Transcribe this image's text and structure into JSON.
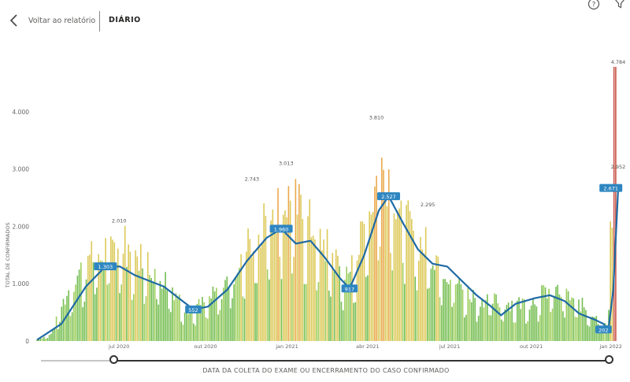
{
  "header": {
    "back_label": "Voltar ao relatório",
    "tab_title": "DIÁRIO"
  },
  "icons": {
    "back": "chevron-left-icon",
    "help": "help-icon",
    "filter": "filter-icon"
  },
  "colors": {
    "moving_average": "#1f6aa5",
    "label_box": "#2e86c1",
    "bar_green": "#5cb132",
    "bar_yellow": "#d6c03b",
    "bar_orange": "#e69a2e",
    "bar_red": "#c0392b"
  },
  "slider": {
    "x_axis_title": "DATA DA COLETA DO EXAME OU ENCERRAMENTO DO CASO CONFIRMADO"
  },
  "chart_data": {
    "type": "bar",
    "ylabel": "TOTAL DE CONFIRMADOS",
    "ylim": [
      0,
      5000
    ],
    "yticks": [
      "0",
      "1.000",
      "2.000",
      "3.000",
      "4.000"
    ],
    "ytick_values": [
      0,
      1000,
      2000,
      3000,
      4000
    ],
    "xticks": [
      "jul 2020",
      "out 2020",
      "jan 2021",
      "abr 2021",
      "jul 2021",
      "out 2021",
      "jan 2022"
    ],
    "xtick_positions": [
      0.168,
      0.345,
      0.512,
      0.677,
      0.845,
      1.012,
      1.175
    ],
    "grid": false,
    "bar_anchors": [
      [
        0.0,
        20
      ],
      [
        0.03,
        120
      ],
      [
        0.05,
        600
      ],
      [
        0.08,
        1100
      ],
      [
        0.12,
        1500
      ],
      [
        0.15,
        1600
      ],
      [
        0.17,
        1700
      ],
      [
        0.2,
        1500
      ],
      [
        0.22,
        1350
      ],
      [
        0.25,
        1150
      ],
      [
        0.28,
        900
      ],
      [
        0.3,
        600
      ],
      [
        0.32,
        550
      ],
      [
        0.35,
        700
      ],
      [
        0.38,
        900
      ],
      [
        0.41,
        1300
      ],
      [
        0.45,
        1900
      ],
      [
        0.48,
        2350
      ],
      [
        0.52,
        2400
      ],
      [
        0.55,
        2100
      ],
      [
        0.58,
        1750
      ],
      [
        0.61,
        1400
      ],
      [
        0.63,
        1100
      ],
      [
        0.65,
        1300
      ],
      [
        0.68,
        2200
      ],
      [
        0.7,
        2900
      ],
      [
        0.72,
        2950
      ],
      [
        0.75,
        2100
      ],
      [
        0.78,
        1700
      ],
      [
        0.81,
        1550
      ],
      [
        0.84,
        1200
      ],
      [
        0.87,
        900
      ],
      [
        0.9,
        750
      ],
      [
        0.93,
        700
      ],
      [
        0.96,
        650
      ],
      [
        0.99,
        650
      ],
      [
        1.02,
        700
      ],
      [
        1.05,
        900
      ],
      [
        1.08,
        800
      ],
      [
        1.11,
        650
      ],
      [
        1.14,
        450
      ],
      [
        1.16,
        250
      ],
      [
        1.17,
        300
      ],
      [
        1.175,
        2000
      ],
      [
        1.18,
        4784
      ]
    ],
    "moving_average": [
      [
        0.0,
        20
      ],
      [
        0.05,
        300
      ],
      [
        0.1,
        950
      ],
      [
        0.14,
        1300
      ],
      [
        0.17,
        1300
      ],
      [
        0.2,
        1150
      ],
      [
        0.23,
        1050
      ],
      [
        0.26,
        950
      ],
      [
        0.29,
        750
      ],
      [
        0.32,
        552
      ],
      [
        0.35,
        600
      ],
      [
        0.39,
        900
      ],
      [
        0.43,
        1400
      ],
      [
        0.47,
        1800
      ],
      [
        0.5,
        1960
      ],
      [
        0.53,
        1700
      ],
      [
        0.56,
        1750
      ],
      [
        0.59,
        1450
      ],
      [
        0.62,
        1100
      ],
      [
        0.64,
        917
      ],
      [
        0.67,
        1500
      ],
      [
        0.7,
        2280
      ],
      [
        0.72,
        2527
      ],
      [
        0.75,
        2050
      ],
      [
        0.78,
        1600
      ],
      [
        0.81,
        1350
      ],
      [
        0.84,
        1300
      ],
      [
        0.87,
        1050
      ],
      [
        0.9,
        800
      ],
      [
        0.93,
        600
      ],
      [
        0.95,
        450
      ],
      [
        0.98,
        650
      ],
      [
        1.02,
        750
      ],
      [
        1.05,
        800
      ],
      [
        1.08,
        700
      ],
      [
        1.11,
        480
      ],
      [
        1.14,
        380
      ],
      [
        1.16,
        300
      ],
      [
        1.17,
        202
      ],
      [
        1.18,
        900
      ],
      [
        1.19,
        2670
      ]
    ],
    "peak_labels": [
      {
        "x": 0.168,
        "y": 2010,
        "text": "2.010"
      },
      {
        "x": 0.44,
        "y": 2743,
        "text": "2.743"
      },
      {
        "x": 0.51,
        "y": 3013,
        "text": "3.013"
      },
      {
        "x": 0.695,
        "y": 3810,
        "text": "3.810"
      },
      {
        "x": 0.8,
        "y": 2295,
        "text": "2.295"
      },
      {
        "x": 1.19,
        "y": 4784,
        "text": "4.784"
      },
      {
        "x": 1.19,
        "y": 2952,
        "text": "2.952"
      }
    ],
    "avg_labels": [
      {
        "x": 0.14,
        "y": 1303,
        "text": "1.303"
      },
      {
        "x": 0.32,
        "y": 552,
        "text": "552"
      },
      {
        "x": 0.5,
        "y": 1960,
        "text": "1.960"
      },
      {
        "x": 0.64,
        "y": 917,
        "text": "917"
      },
      {
        "x": 0.72,
        "y": 2527,
        "text": "2.527"
      },
      {
        "x": 1.16,
        "y": 202,
        "text": "202"
      },
      {
        "x": 1.175,
        "y": 2671,
        "text": "2.671"
      }
    ]
  }
}
